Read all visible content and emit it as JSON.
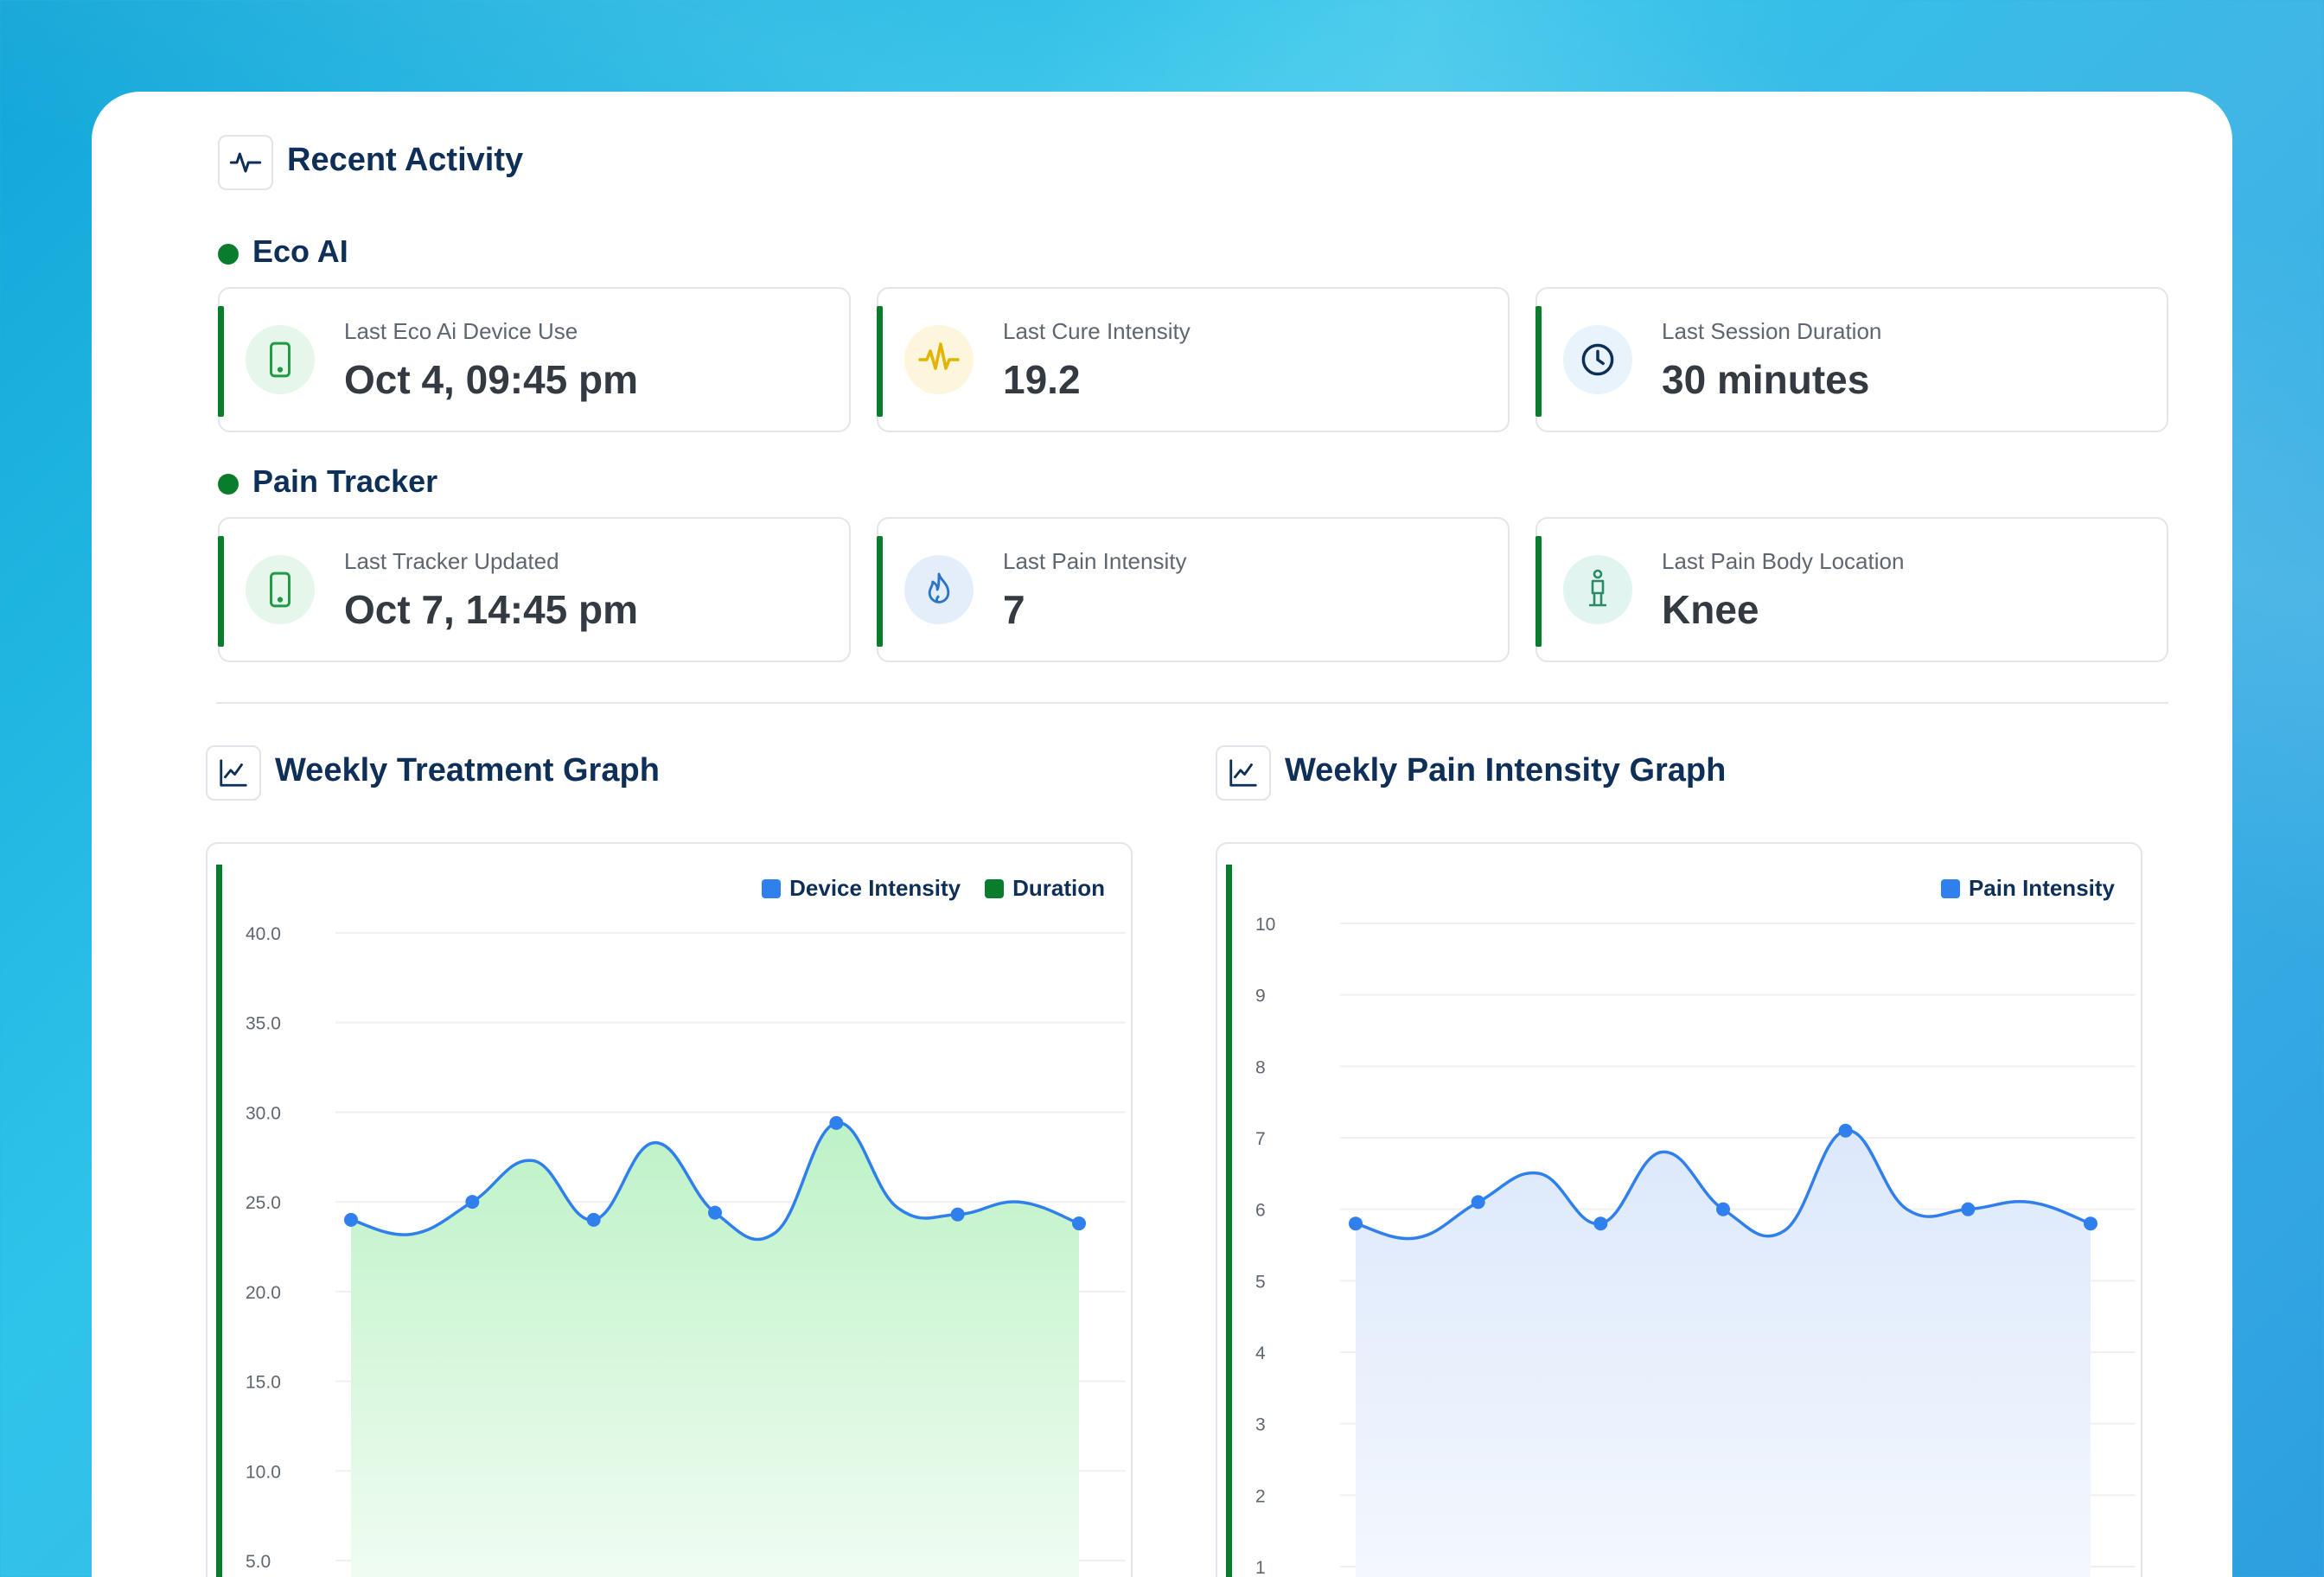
{
  "recent_activity": {
    "title": "Recent Activity",
    "icon": "activity-pulse-icon"
  },
  "eco_ai": {
    "title": "Eco AI",
    "cards": [
      {
        "label": "Last Eco Ai Device Use",
        "value": "Oct 4, 09:45 pm",
        "icon": "phone-icon",
        "color": "#1f9a45"
      },
      {
        "label": "Last Cure Intensity",
        "value": "19.2",
        "icon": "waveform-icon",
        "color": "#e3b400"
      },
      {
        "label": "Last Session Duration",
        "value": "30 minutes",
        "icon": "clock-icon",
        "color": "#0e2f57"
      }
    ]
  },
  "pain_tracker": {
    "title": "Pain Tracker",
    "cards": [
      {
        "label": "Last Tracker Updated",
        "value": "Oct 7, 14:45 pm",
        "icon": "phone-icon",
        "color": "#1f9a45"
      },
      {
        "label": "Last Pain Intensity",
        "value": "7",
        "icon": "flame-icon",
        "color": "#2a74c9"
      },
      {
        "label": "Last Pain Body Location",
        "value": "Knee",
        "icon": "body-figure-icon",
        "color": "#2a8a6a"
      }
    ]
  },
  "treatment_graph": {
    "title": "Weekly Treatment Graph",
    "icon": "line-chart-icon",
    "legend": [
      {
        "name": "Device Intensity",
        "color": "#2f80ed"
      },
      {
        "name": "Duration",
        "color": "#0a7d2c"
      }
    ]
  },
  "pain_graph": {
    "title": "Weekly Pain Intensity Graph",
    "icon": "line-chart-icon",
    "legend": [
      {
        "name": "Pain Intensity",
        "color": "#2f80ed"
      }
    ]
  },
  "chart_data": [
    {
      "type": "area",
      "title": "Weekly Treatment Graph",
      "y_ticks": [
        "40.0",
        "35.0",
        "30.0",
        "25.0",
        "20.0",
        "15.0",
        "10.0",
        "5.0"
      ],
      "ylim": [
        0,
        40
      ],
      "series": [
        {
          "name": "Device Intensity",
          "values": [
            24.0,
            25.0,
            24.0,
            24.4,
            29.4,
            24.3,
            23.8
          ]
        }
      ],
      "grid": true,
      "legend_position": "top-right"
    },
    {
      "type": "area",
      "title": "Weekly Pain Intensity Graph",
      "y_ticks": [
        "10",
        "9",
        "8",
        "7",
        "6",
        "5",
        "4",
        "3",
        "2",
        "1"
      ],
      "ylim": [
        1,
        10
      ],
      "series": [
        {
          "name": "Pain Intensity",
          "values": [
            5.8,
            6.1,
            5.8,
            6.0,
            7.1,
            6.0,
            5.8
          ]
        }
      ],
      "grid": true,
      "legend_position": "top-right"
    }
  ]
}
